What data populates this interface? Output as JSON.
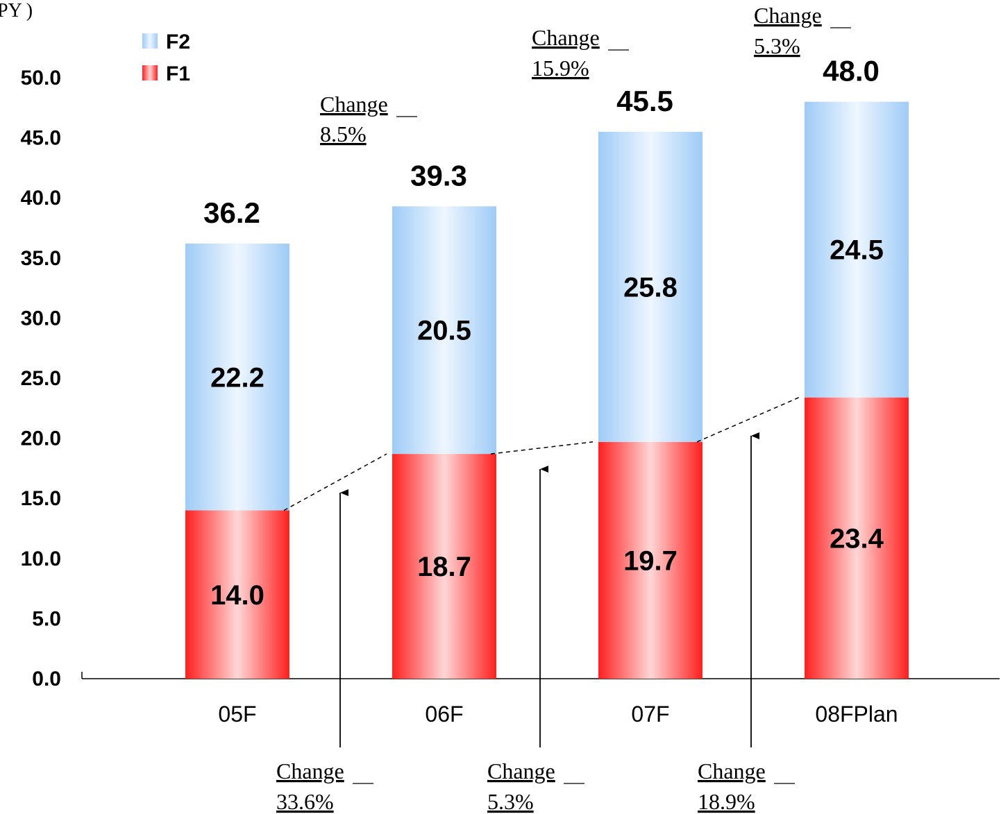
{
  "unit_fragment": "PY )",
  "chart_data": {
    "type": "bar",
    "stacked": true,
    "categories": [
      "05F",
      "06F",
      "07F",
      "08FPlan"
    ],
    "series": [
      {
        "name": "F1",
        "values": [
          14.0,
          18.7,
          19.7,
          23.4
        ],
        "color": "#ff2222"
      },
      {
        "name": "F2",
        "values": [
          22.2,
          20.5,
          25.8,
          24.5
        ],
        "color": "#a8d0f8"
      }
    ],
    "totals": [
      36.2,
      39.3,
      45.5,
      48.0
    ],
    "value_labels": {
      "F1": [
        "14.0",
        "18.7",
        "19.7",
        "23.4"
      ],
      "F2": [
        "22.2",
        "20.5",
        "25.8",
        "24.5"
      ],
      "totals": [
        "36.2",
        "39.3",
        "45.5",
        "48.0"
      ]
    },
    "ylim": [
      0,
      50
    ],
    "yticks": [
      "0.0",
      "5.0",
      "10.0",
      "15.0",
      "20.0",
      "25.0",
      "30.0",
      "35.0",
      "40.0",
      "45.0",
      "50.0"
    ],
    "legend": {
      "entries": [
        "F2",
        "F1"
      ],
      "placement": "top-left"
    },
    "grid": false,
    "annotations": {
      "total_change": [
        {
          "between": [
            "05F",
            "06F"
          ],
          "label": "Change",
          "value": "8.5%"
        },
        {
          "between": [
            "06F",
            "07F"
          ],
          "label": "Change",
          "value": "15.9%"
        },
        {
          "between": [
            "07F",
            "08FPlan"
          ],
          "label": "Change",
          "value": "5.3%"
        }
      ],
      "f1_change": [
        {
          "between": [
            "05F",
            "06F"
          ],
          "label": "Change",
          "value": "33.6%"
        },
        {
          "between": [
            "06F",
            "07F"
          ],
          "label": "Change",
          "value": "5.3%"
        },
        {
          "between": [
            "07F",
            "08FPlan"
          ],
          "label": "Change",
          "value": "18.9%"
        }
      ]
    }
  }
}
